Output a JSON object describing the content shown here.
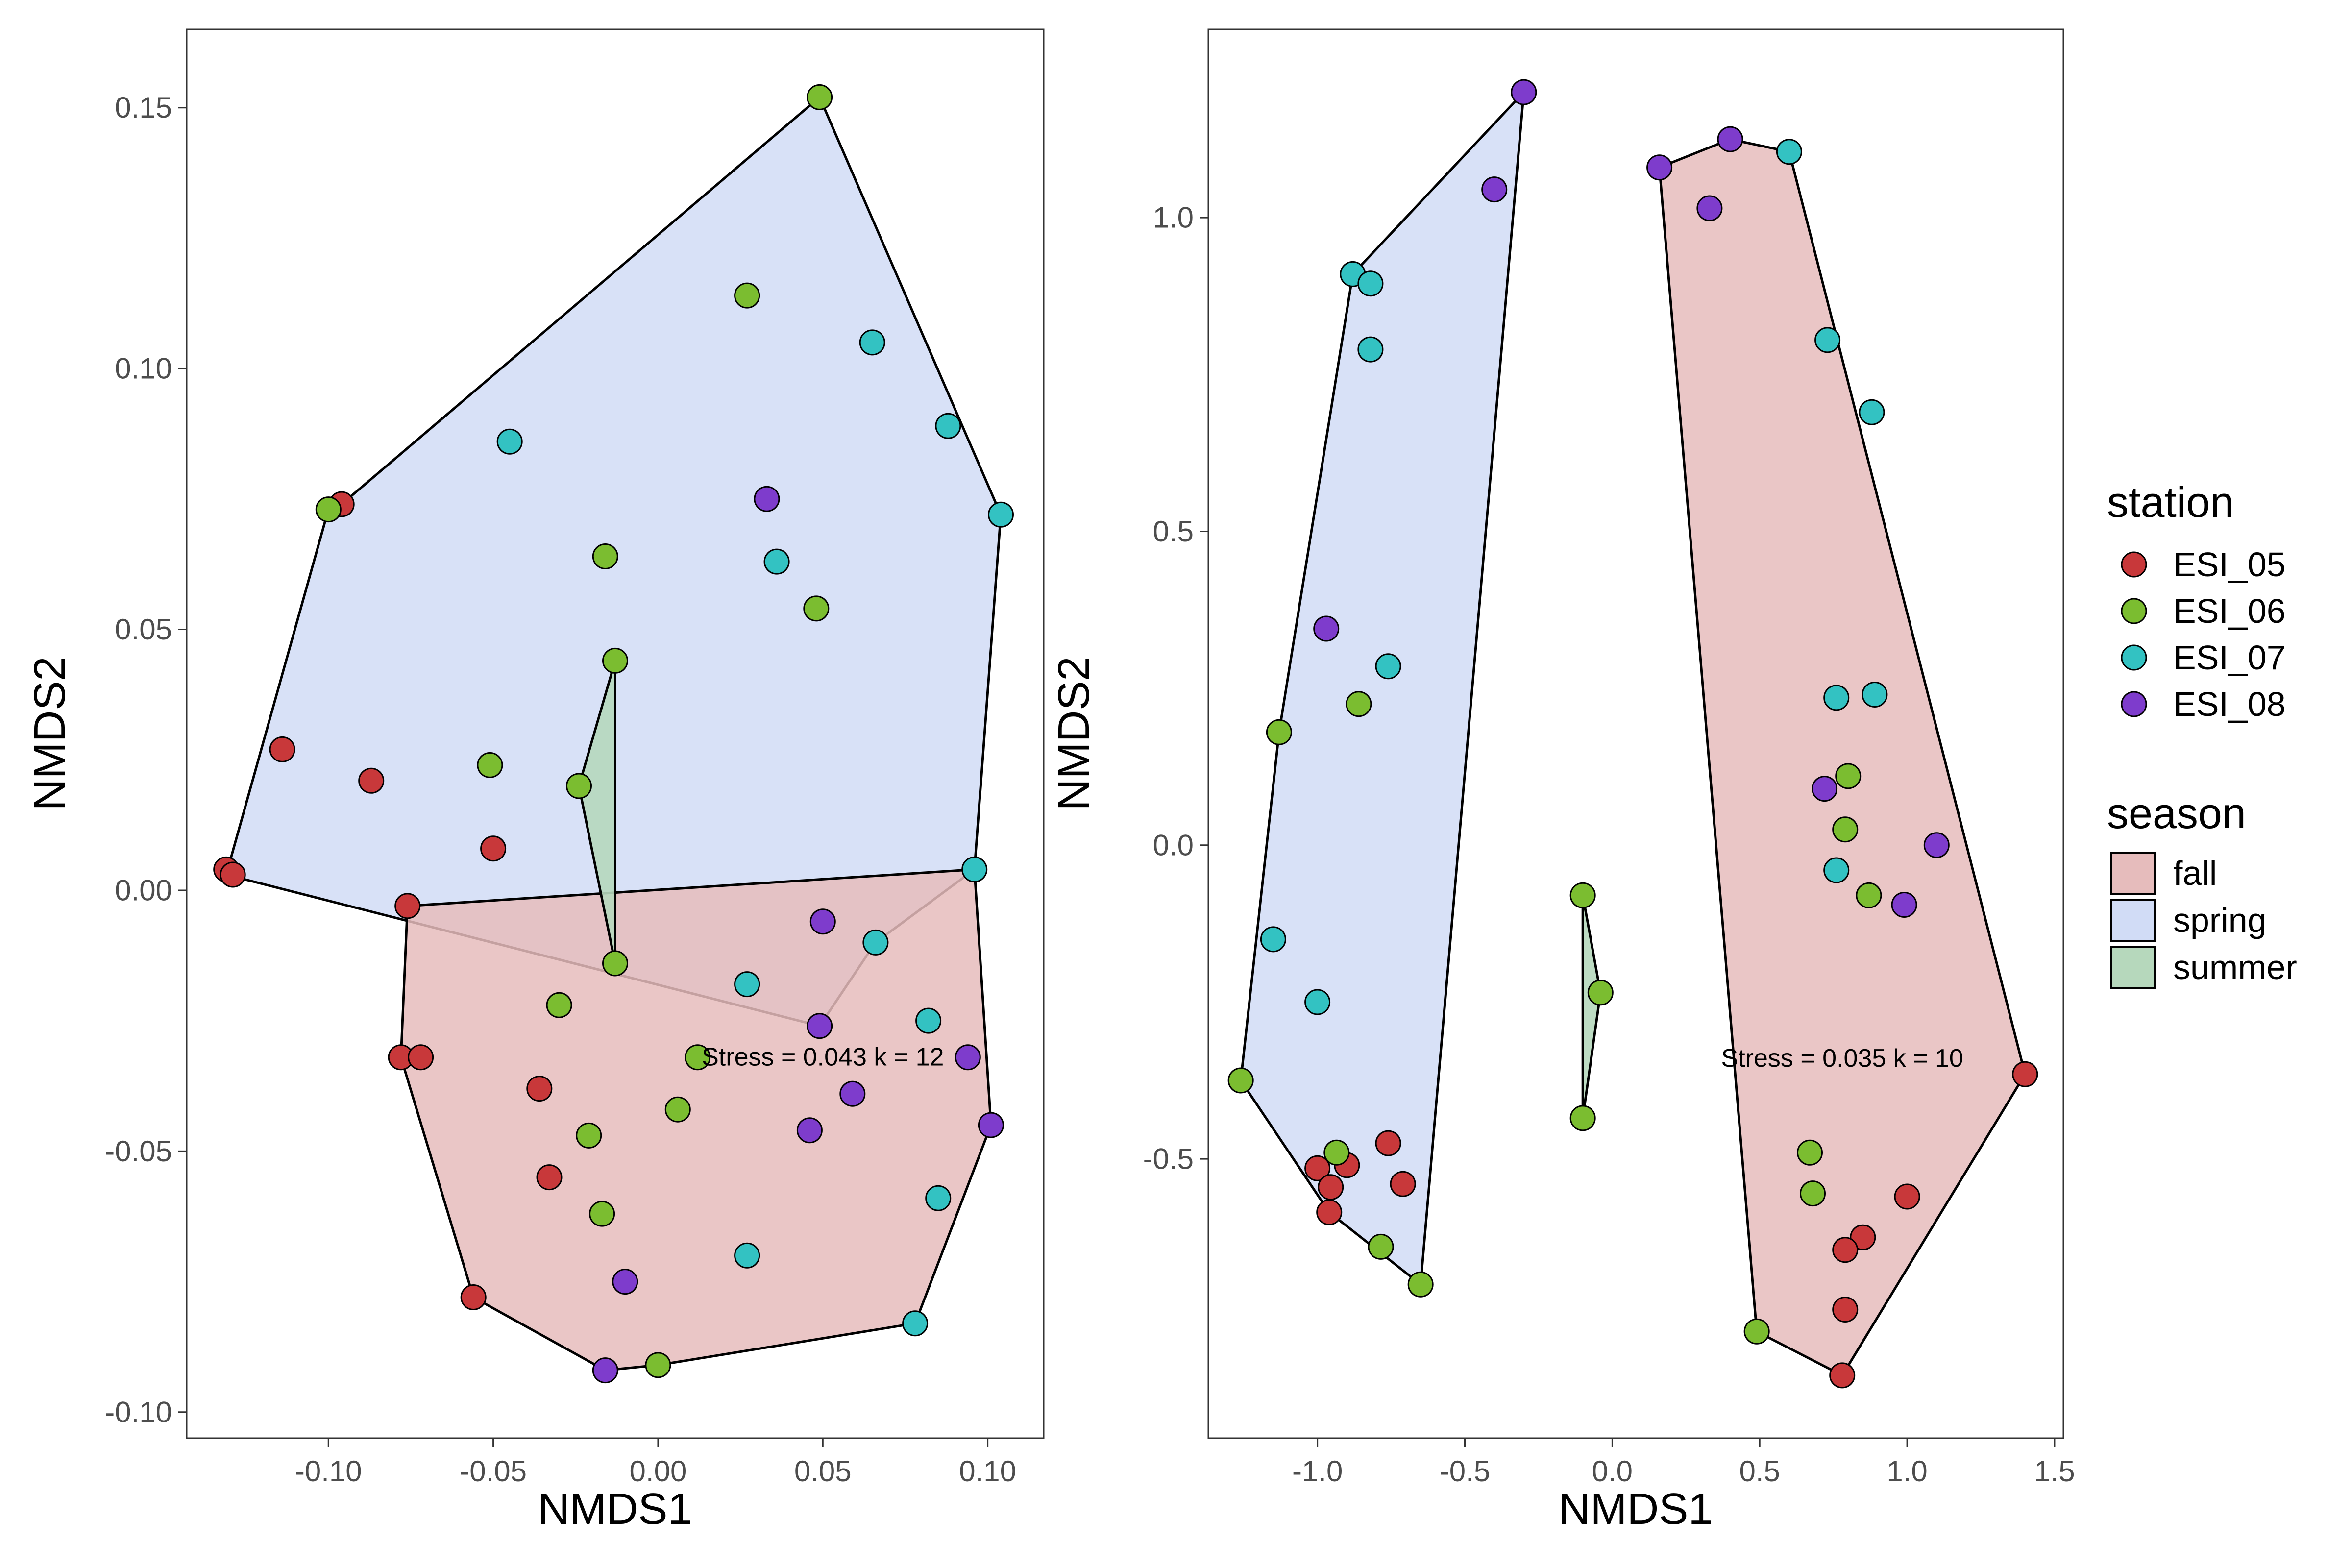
{
  "station_colors": {
    "ESI_05": "#c8383a",
    "ESI_06": "#7bbd30",
    "ESI_07": "#33c2c2",
    "ESI_08": "#7e3ccc"
  },
  "season_colors": {
    "fall": "#e6bcbc",
    "spring": "#d1dcf6",
    "summer": "#b6d8bc"
  },
  "legend": {
    "station_title": "station",
    "stations": [
      "ESI_05",
      "ESI_06",
      "ESI_07",
      "ESI_08"
    ],
    "season_title": "season",
    "seasons": [
      "fall",
      "spring",
      "summer"
    ]
  },
  "chart_data": [
    {
      "type": "scatter",
      "xlabel": "NMDS1",
      "ylabel": "NMDS2",
      "xlim": [
        -0.143,
        0.117
      ],
      "ylim": [
        -0.105,
        0.165
      ],
      "xticks": [
        -0.1,
        -0.05,
        0.0,
        0.05,
        0.1
      ],
      "xtick_labels": [
        "-0.10",
        "-0.05",
        "0.00",
        "0.05",
        "0.10"
      ],
      "yticks": [
        -0.1,
        -0.05,
        0.0,
        0.05,
        0.1,
        0.15
      ],
      "ytick_labels": [
        "-0.10",
        "-0.05",
        "0.00",
        "0.05",
        "0.10",
        "0.15"
      ],
      "grid": false,
      "annotation": {
        "text": "Stress = 0.043 k = 12",
        "x": 0.05,
        "y": -0.032
      },
      "hulls": [
        {
          "season": "spring",
          "points": [
            [
              -0.131,
              0.003
            ],
            [
              -0.1,
              0.073
            ],
            [
              -0.096,
              0.074
            ],
            [
              0.049,
              0.152
            ],
            [
              0.104,
              0.072
            ],
            [
              0.096,
              0.004
            ],
            [
              0.066,
              -0.01
            ],
            [
              0.049,
              -0.026
            ]
          ]
        },
        {
          "season": "fall",
          "points": [
            [
              -0.076,
              -0.003
            ],
            [
              -0.078,
              -0.032
            ],
            [
              -0.056,
              -0.078
            ],
            [
              -0.016,
              -0.092
            ],
            [
              0.0,
              -0.091
            ],
            [
              0.078,
              -0.083
            ],
            [
              0.101,
              -0.045
            ],
            [
              0.096,
              0.004
            ]
          ]
        },
        {
          "season": "summer",
          "points": [
            [
              -0.013,
              0.044
            ],
            [
              -0.024,
              0.02
            ],
            [
              -0.013,
              -0.014
            ]
          ]
        }
      ],
      "series": [
        {
          "name": "ESI_05",
          "points": [
            [
              -0.131,
              0.004
            ],
            [
              -0.129,
              0.003
            ],
            [
              -0.114,
              0.027
            ],
            [
              -0.087,
              0.021
            ],
            [
              -0.096,
              0.074
            ],
            [
              -0.05,
              0.008
            ],
            [
              -0.076,
              -0.003
            ],
            [
              -0.078,
              -0.032
            ],
            [
              -0.072,
              -0.032
            ],
            [
              -0.036,
              -0.038
            ],
            [
              -0.033,
              -0.055
            ],
            [
              -0.056,
              -0.078
            ]
          ]
        },
        {
          "name": "ESI_06",
          "points": [
            [
              -0.1,
              0.073
            ],
            [
              0.049,
              0.152
            ],
            [
              0.027,
              0.114
            ],
            [
              -0.016,
              0.064
            ],
            [
              0.048,
              0.054
            ],
            [
              -0.013,
              0.044
            ],
            [
              -0.051,
              0.024
            ],
            [
              -0.024,
              0.02
            ],
            [
              -0.013,
              -0.014
            ],
            [
              -0.03,
              -0.022
            ],
            [
              0.012,
              -0.032
            ],
            [
              0.006,
              -0.042
            ],
            [
              -0.021,
              -0.047
            ],
            [
              -0.017,
              -0.062
            ],
            [
              0.0,
              -0.091
            ]
          ]
        },
        {
          "name": "ESI_07",
          "points": [
            [
              -0.045,
              0.086
            ],
            [
              0.065,
              0.105
            ],
            [
              0.088,
              0.089
            ],
            [
              0.104,
              0.072
            ],
            [
              0.036,
              0.063
            ],
            [
              0.096,
              0.004
            ],
            [
              0.066,
              -0.01
            ],
            [
              0.027,
              -0.018
            ],
            [
              0.082,
              -0.025
            ],
            [
              0.085,
              -0.059
            ],
            [
              0.027,
              -0.07
            ],
            [
              0.078,
              -0.083
            ]
          ]
        },
        {
          "name": "ESI_08",
          "points": [
            [
              0.033,
              0.075
            ],
            [
              0.05,
              -0.006
            ],
            [
              0.049,
              -0.026
            ],
            [
              0.094,
              -0.032
            ],
            [
              0.059,
              -0.039
            ],
            [
              0.046,
              -0.046
            ],
            [
              0.101,
              -0.045
            ],
            [
              -0.01,
              -0.075
            ],
            [
              -0.016,
              -0.092
            ]
          ]
        }
      ]
    },
    {
      "type": "scatter",
      "xlabel": "NMDS1",
      "ylabel": "NMDS2",
      "xlim": [
        -1.37,
        1.53
      ],
      "ylim": [
        -0.945,
        1.3
      ],
      "xticks": [
        -1.0,
        -0.5,
        0.0,
        0.5,
        1.0,
        1.5
      ],
      "xtick_labels": [
        "-1.0",
        "-0.5",
        "0.0",
        "0.5",
        "1.0",
        "1.5"
      ],
      "yticks": [
        -0.5,
        0.0,
        0.5,
        1.0
      ],
      "ytick_labels": [
        "-0.5",
        "0.0",
        "0.5",
        "1.0"
      ],
      "grid": false,
      "annotation": {
        "text": "Stress = 0.035 k = 10",
        "x": 0.78,
        "y": -0.34
      },
      "hulls": [
        {
          "season": "spring",
          "points": [
            [
              -1.26,
              -0.375
            ],
            [
              -1.13,
              0.18
            ],
            [
              -0.88,
              0.91
            ],
            [
              -0.3,
              1.2
            ],
            [
              -0.65,
              -0.7
            ],
            [
              -0.96,
              -0.585
            ]
          ]
        },
        {
          "season": "fall",
          "points": [
            [
              0.16,
              1.08
            ],
            [
              0.4,
              1.125
            ],
            [
              0.6,
              1.105
            ],
            [
              1.4,
              -0.365
            ],
            [
              0.78,
              -0.845
            ],
            [
              0.49,
              -0.775
            ]
          ]
        },
        {
          "season": "summer",
          "points": [
            [
              -0.1,
              -0.08
            ],
            [
              -0.04,
              -0.235
            ],
            [
              -0.1,
              -0.435
            ]
          ]
        }
      ],
      "series": [
        {
          "name": "ESI_05",
          "points": [
            [
              -1.0,
              -0.515
            ],
            [
              -0.955,
              -0.545
            ],
            [
              -0.9,
              -0.51
            ],
            [
              -0.96,
              -0.585
            ],
            [
              -0.76,
              -0.475
            ],
            [
              -0.71,
              -0.54
            ],
            [
              1.4,
              -0.365
            ],
            [
              1.0,
              -0.56
            ],
            [
              0.85,
              -0.625
            ],
            [
              0.79,
              -0.645
            ],
            [
              0.79,
              -0.74
            ],
            [
              0.78,
              -0.845
            ]
          ]
        },
        {
          "name": "ESI_06",
          "points": [
            [
              -1.26,
              -0.375
            ],
            [
              -1.13,
              0.18
            ],
            [
              -0.86,
              0.225
            ],
            [
              -0.935,
              -0.49
            ],
            [
              -0.785,
              -0.64
            ],
            [
              -0.65,
              -0.7
            ],
            [
              -0.1,
              -0.08
            ],
            [
              -0.04,
              -0.235
            ],
            [
              -0.1,
              -0.435
            ],
            [
              0.8,
              0.11
            ],
            [
              0.79,
              0.025
            ],
            [
              0.87,
              -0.08
            ],
            [
              0.67,
              -0.49
            ],
            [
              0.68,
              -0.555
            ],
            [
              0.49,
              -0.775
            ]
          ]
        },
        {
          "name": "ESI_07",
          "points": [
            [
              -0.88,
              0.91
            ],
            [
              -0.82,
              0.895
            ],
            [
              -0.82,
              0.79
            ],
            [
              -0.76,
              0.285
            ],
            [
              -1.15,
              -0.15
            ],
            [
              -1.0,
              -0.25
            ],
            [
              0.6,
              1.105
            ],
            [
              0.73,
              0.805
            ],
            [
              0.88,
              0.69
            ],
            [
              0.76,
              0.235
            ],
            [
              0.89,
              0.24
            ],
            [
              0.76,
              -0.04
            ]
          ]
        },
        {
          "name": "ESI_08",
          "points": [
            [
              -0.3,
              1.2
            ],
            [
              -0.4,
              1.045
            ],
            [
              -0.97,
              0.345
            ],
            [
              0.16,
              1.08
            ],
            [
              0.4,
              1.125
            ],
            [
              0.33,
              1.015
            ],
            [
              0.72,
              0.09
            ],
            [
              1.1,
              0.0
            ],
            [
              0.99,
              -0.095
            ]
          ]
        }
      ]
    }
  ]
}
